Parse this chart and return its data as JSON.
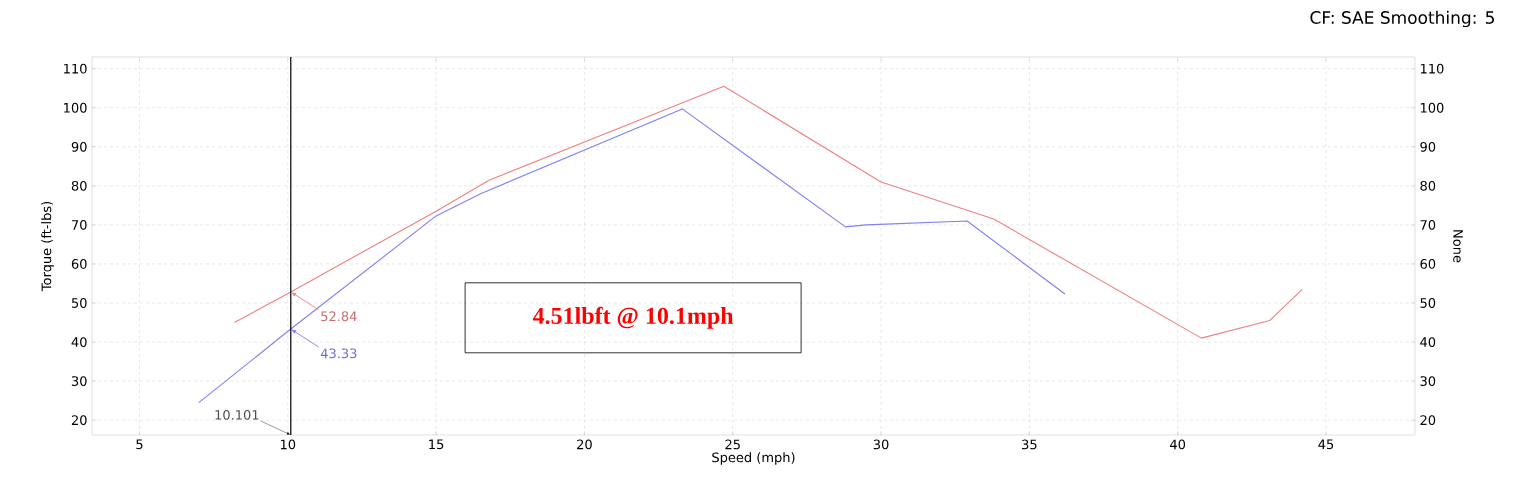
{
  "chart_data": {
    "type": "line",
    "subtitle": "CF: SAE Smoothing: 5",
    "xlabel": "Speed (mph)",
    "ylabel": "Torque (ft-lbs)",
    "y2label": "None",
    "series": [
      {
        "color": "#f08080",
        "x": [
          8.2,
          10.1,
          15,
          16.8,
          24.7,
          30,
          33.8,
          40.8,
          43.1,
          44.2
        ],
        "values": [
          45,
          52.84,
          73.5,
          81.5,
          105.5,
          81,
          71.5,
          41,
          45.5,
          53.5
        ]
      },
      {
        "color": "#8080f0",
        "x": [
          7,
          10.1,
          15,
          16.5,
          23.3,
          28.8,
          29.5,
          32.9,
          36.2
        ],
        "values": [
          24.5,
          43.33,
          72.3,
          78,
          99.7,
          69.5,
          70,
          71,
          52.3
        ]
      }
    ],
    "xlim": [
      3.4,
      48
    ],
    "xticks": [
      5,
      10,
      15,
      20,
      25,
      30,
      35,
      40,
      45
    ],
    "ylim": [
      16.2,
      113
    ],
    "yticks": [
      20,
      30,
      40,
      50,
      60,
      70,
      80,
      90,
      100,
      110
    ],
    "y2lim": [
      16.2,
      113
    ],
    "y2ticks": [
      20,
      30,
      40,
      50,
      60,
      70,
      80,
      90,
      100,
      110
    ],
    "grid": true,
    "marker": "none",
    "line_style": "solid",
    "ref_lines": [
      {
        "axis": "x",
        "value": 10.101,
        "label": "10.101",
        "color": "#000000"
      }
    ],
    "annotations": [
      {
        "text": "52.84",
        "x": 10.1,
        "y": 52.84
      },
      {
        "text": "43.33",
        "x": 10.1,
        "y": 43.33
      },
      "4.51lbft @ 10.1mph"
    ]
  }
}
